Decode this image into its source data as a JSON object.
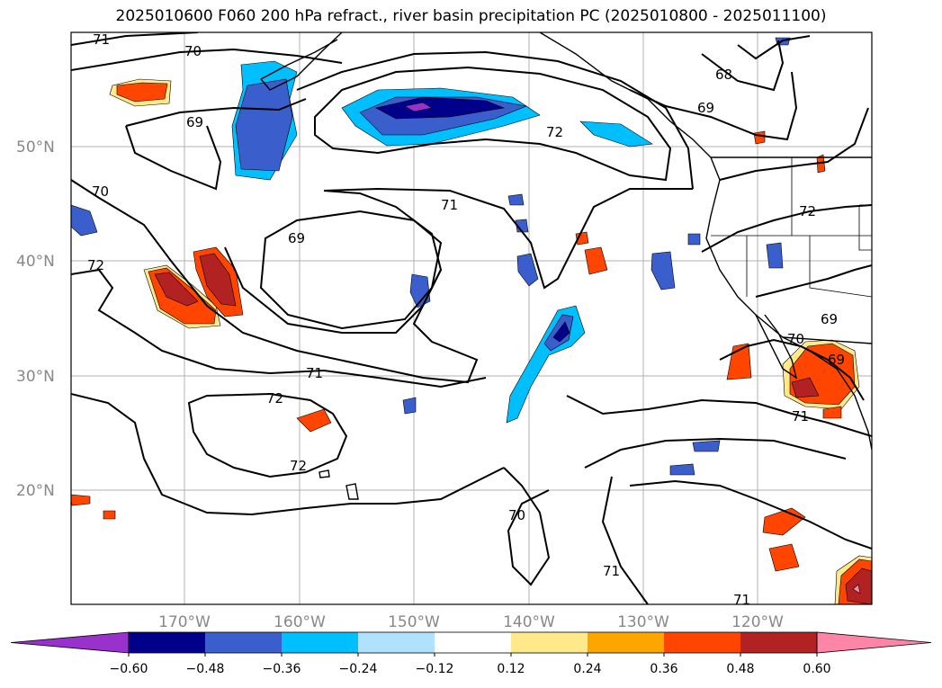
{
  "title": "2025010600 F060 200 hPa refract., river basin precipitation PC (2025010800 - 2025011100)",
  "lat_labels": [
    "50°N",
    "40°N",
    "30°N",
    "20°N"
  ],
  "lon_labels": [
    "170°W",
    "160°W",
    "150°W",
    "140°W",
    "130°W",
    "120°W"
  ],
  "contour_labels": [
    "71",
    "70",
    "69",
    "70",
    "72",
    "69",
    "71",
    "72",
    "69",
    "68",
    "69",
    "72",
    "71",
    "72",
    "71",
    "69",
    "70",
    "71",
    "70",
    "71",
    "72"
  ],
  "colorbar": {
    "ticks": [
      "−0.60",
      "−0.48",
      "−0.36",
      "−0.24",
      "−0.12",
      "0.12",
      "0.24",
      "0.36",
      "0.48",
      "0.60"
    ],
    "colors": [
      "#9932cc",
      "#00008b",
      "#3a5fcd",
      "#00bfff",
      "#b0e2ff",
      "#ffffff",
      "#ffe98a",
      "#ffa500",
      "#ff4500",
      "#b22222",
      "#ff85a8"
    ]
  }
}
